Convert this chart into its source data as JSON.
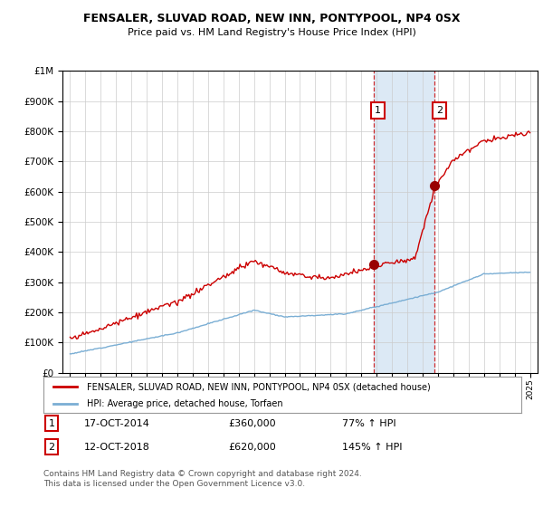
{
  "title": "FENSALER, SLUVAD ROAD, NEW INN, PONTYPOOL, NP4 0SX",
  "subtitle": "Price paid vs. HM Land Registry's House Price Index (HPI)",
  "legend_line1": "FENSALER, SLUVAD ROAD, NEW INN, PONTYPOOL, NP4 0SX (detached house)",
  "legend_line2": "HPI: Average price, detached house, Torfaen",
  "sale1_label": "1",
  "sale1_date": "17-OCT-2014",
  "sale1_price": "£360,000",
  "sale1_hpi": "77% ↑ HPI",
  "sale2_label": "2",
  "sale2_date": "12-OCT-2018",
  "sale2_price": "£620,000",
  "sale2_hpi": "145% ↑ HPI",
  "footer": "Contains HM Land Registry data © Crown copyright and database right 2024.\nThis data is licensed under the Open Government Licence v3.0.",
  "red_color": "#cc0000",
  "blue_color": "#7aaed4",
  "shade_color": "#dce9f5",
  "ylim": [
    0,
    1000000
  ],
  "sale1_year": 2014.79,
  "sale2_year": 2018.79,
  "sale1_price_val": 360000,
  "sale2_price_val": 620000
}
